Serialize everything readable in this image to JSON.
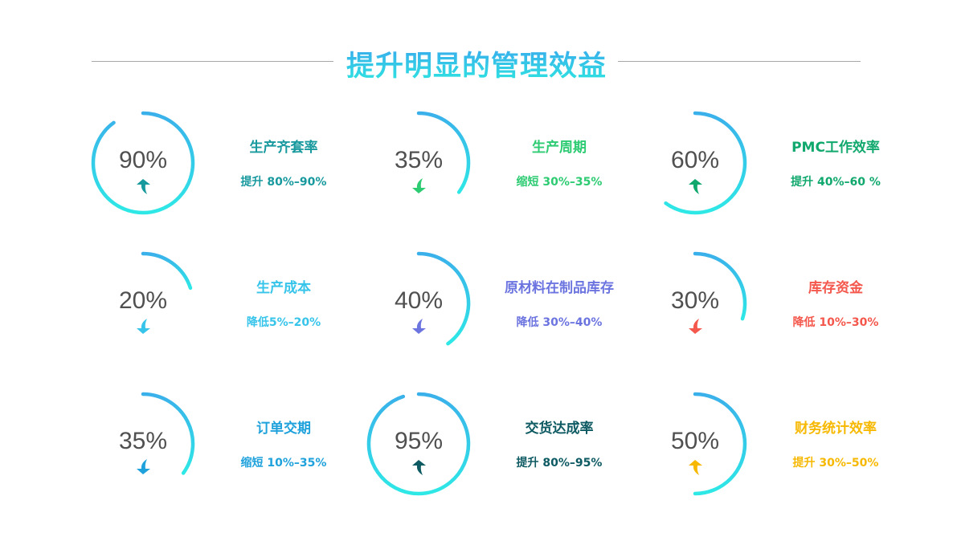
{
  "title": "提升明显的管理效益",
  "ring_gradient": [
    "#3ab0ea",
    "#2ee8e6"
  ],
  "cards": [
    {
      "percent": "90%",
      "value": 90,
      "label": "生产齐套率",
      "desc": "提升 80%–90%",
      "direction": "up",
      "color": "#17999e"
    },
    {
      "percent": "35%",
      "value": 35,
      "label": "生产周期",
      "desc": "缩短 30%–35%",
      "direction": "down",
      "color": "#2dcb72"
    },
    {
      "percent": "60%",
      "value": 60,
      "label": "PMC工作效率",
      "desc": "提升 40%–60 %",
      "direction": "up",
      "color": "#10a86d"
    },
    {
      "percent": "20%",
      "value": 20,
      "label": "生产成本",
      "desc": "降低5%–20%",
      "direction": "down",
      "color": "#37c4ea"
    },
    {
      "percent": "40%",
      "value": 40,
      "label": "原材料在制品库存",
      "desc": "降低 30%–40%",
      "direction": "down",
      "color": "#6c74e0"
    },
    {
      "percent": "30%",
      "value": 30,
      "label": "库存资金",
      "desc": "降低 10%–30%",
      "direction": "down",
      "color": "#f4574c"
    },
    {
      "percent": "35%",
      "value": 35,
      "label": "订单交期",
      "desc": "缩短 10%–35%",
      "direction": "down",
      "color": "#1fa2dc"
    },
    {
      "percent": "95%",
      "value": 95,
      "label": "交货达成率",
      "desc": "提升 80%–95%",
      "direction": "up",
      "color": "#0e5a62"
    },
    {
      "percent": "50%",
      "value": 50,
      "label": "财务统计效率",
      "desc": "提升 30%–50%",
      "direction": "up",
      "color": "#f6b800"
    }
  ]
}
